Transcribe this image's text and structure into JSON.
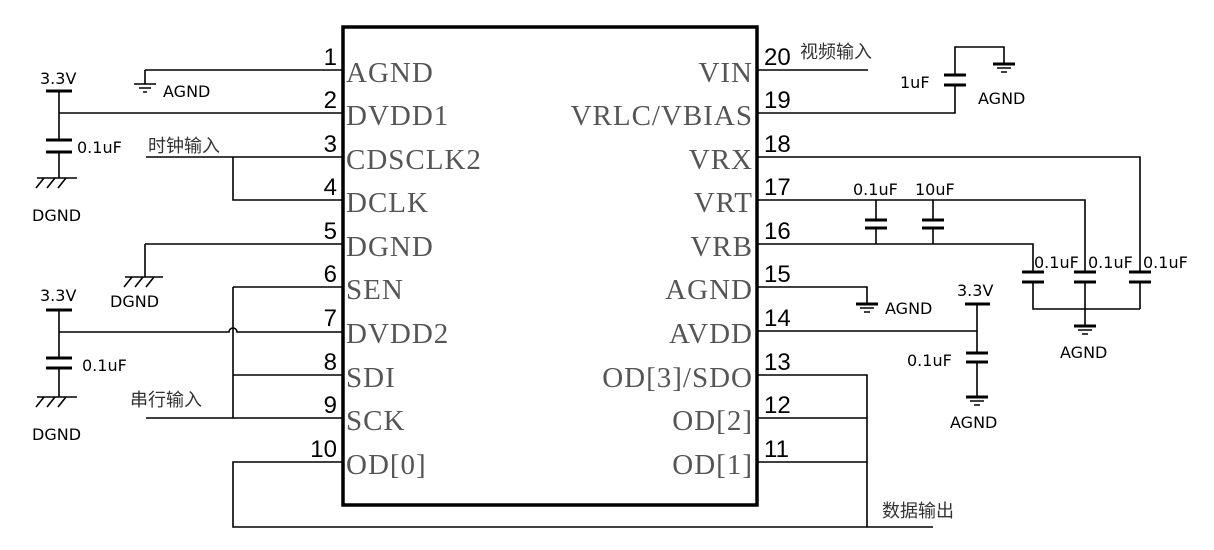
{
  "chip": {
    "left_pins": [
      {
        "num": "1",
        "label": "AGND"
      },
      {
        "num": "2",
        "label": "DVDD1"
      },
      {
        "num": "3",
        "label": "CDSCLK2"
      },
      {
        "num": "4",
        "label": "DCLK"
      },
      {
        "num": "5",
        "label": "DGND"
      },
      {
        "num": "6",
        "label": "SEN"
      },
      {
        "num": "7",
        "label": "DVDD2"
      },
      {
        "num": "8",
        "label": "SDI"
      },
      {
        "num": "9",
        "label": "SCK"
      },
      {
        "num": "10",
        "label": "OD[0]"
      }
    ],
    "right_pins": [
      {
        "num": "20",
        "label": "VIN"
      },
      {
        "num": "19",
        "label": "VRLC/VBIAS"
      },
      {
        "num": "18",
        "label": "VRX"
      },
      {
        "num": "17",
        "label": "VRT"
      },
      {
        "num": "16",
        "label": "VRB"
      },
      {
        "num": "15",
        "label": "AGND"
      },
      {
        "num": "14",
        "label": "AVDD"
      },
      {
        "num": "13",
        "label": "OD[3]/SDO"
      },
      {
        "num": "12",
        "label": "OD[2]"
      },
      {
        "num": "11",
        "label": "OD[1]"
      }
    ]
  },
  "labels": {
    "agnd_pin1": "AGND",
    "vcc_top": "3.3V",
    "cap_top": "0.1uF",
    "dgnd_top": "DGND",
    "clock_in": "时钟输入",
    "dgnd_pin5": "DGND",
    "vcc_bottom": "3.3V",
    "cap_bottom": "0.1uF",
    "dgnd_bottom": "DGND",
    "serial_in": "串行输入",
    "data_out": "数据输出",
    "video_in": "视频输入",
    "cap_vrlc": "1uF",
    "agnd_vrlc": "AGND",
    "cap_vrt_vrb_1": "0.1uF",
    "cap_vrt_vrb_2": "10uF",
    "cap_vrb": "0.1uF",
    "cap_vrt": "0.1uF",
    "cap_vrx": "0.1uF",
    "agnd_ref": "AGND",
    "agnd_pin15": "AGND",
    "vcc_avdd": "3.3V",
    "cap_avdd": "0.1uF",
    "agnd_avdd": "AGND"
  }
}
